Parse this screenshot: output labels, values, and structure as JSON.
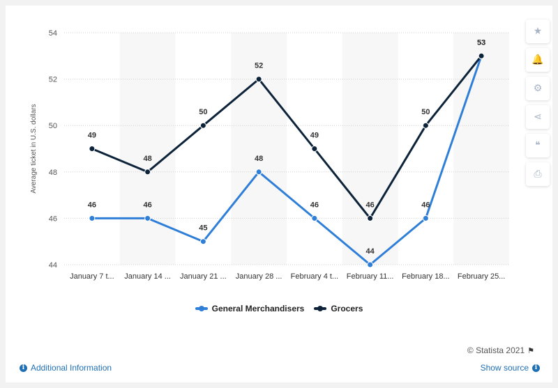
{
  "chart_data": {
    "type": "line",
    "categories": [
      "January 7 t...",
      "January 14 ...",
      "January 21 ...",
      "January 28 ...",
      "February 4 t...",
      "February 11...",
      "February 18...",
      "February 25..."
    ],
    "series": [
      {
        "name": "General Merchandisers",
        "values": [
          46,
          46,
          45,
          48,
          46,
          44,
          46,
          53
        ],
        "color": "#2f7ed8"
      },
      {
        "name": "Grocers",
        "values": [
          49,
          48,
          50,
          52,
          49,
          46,
          50,
          53
        ],
        "color": "#0d233a"
      }
    ],
    "title": "",
    "xlabel": "",
    "ylabel": "Average ticket in U.S. dollars",
    "ylim": [
      44,
      54
    ],
    "yticks": [
      44,
      46,
      48,
      50,
      52,
      54
    ],
    "grid": true,
    "legend_position": "bottom"
  },
  "toolbar": {
    "icons": [
      "star-icon",
      "bell-icon",
      "gear-icon",
      "share-icon",
      "quote-icon",
      "print-icon"
    ],
    "glyphs": [
      "★",
      "🔔",
      "⚙",
      "⋖",
      "❝",
      "⎙"
    ]
  },
  "footer": {
    "credits": "© Statista 2021",
    "additional_info": "Additional Information",
    "show_source": "Show source"
  },
  "colors": {
    "accent": "#1f6fb5",
    "band": "#f7f7f7"
  }
}
